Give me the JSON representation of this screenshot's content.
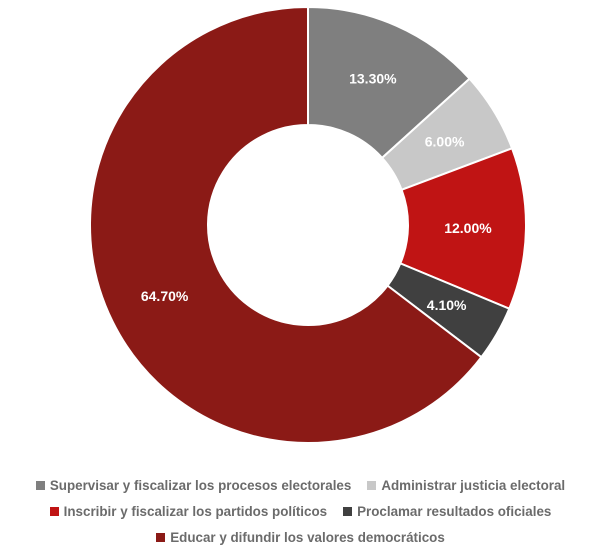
{
  "chart_data": {
    "type": "pie",
    "variant": "donut",
    "legend_position": "bottom",
    "slices": [
      {
        "label": "Supervisar y fiscalizar los procesos electorales",
        "value": 13.3,
        "display": "13.30%",
        "color": "#7f7f7f",
        "label_color": "#ffffff"
      },
      {
        "label": "Administrar justicia electoral",
        "value": 6.0,
        "display": "6.00%",
        "color": "#c8c8c8",
        "label_color": "#ffffff"
      },
      {
        "label": "Inscribir y fiscalizar los partidos políticos",
        "value": 12.0,
        "display": "12.00%",
        "color": "#c01414",
        "label_color": "#ffffff"
      },
      {
        "label": "Proclamar resultados oficiales",
        "value": 4.1,
        "display": "4.10%",
        "color": "#404040",
        "label_color": "#ffffff"
      },
      {
        "label": "Educar y difundir los valores democráticos",
        "value": 64.7,
        "display": "64.70%",
        "color": "#8b1a16",
        "label_color": "#ffffff"
      }
    ]
  }
}
